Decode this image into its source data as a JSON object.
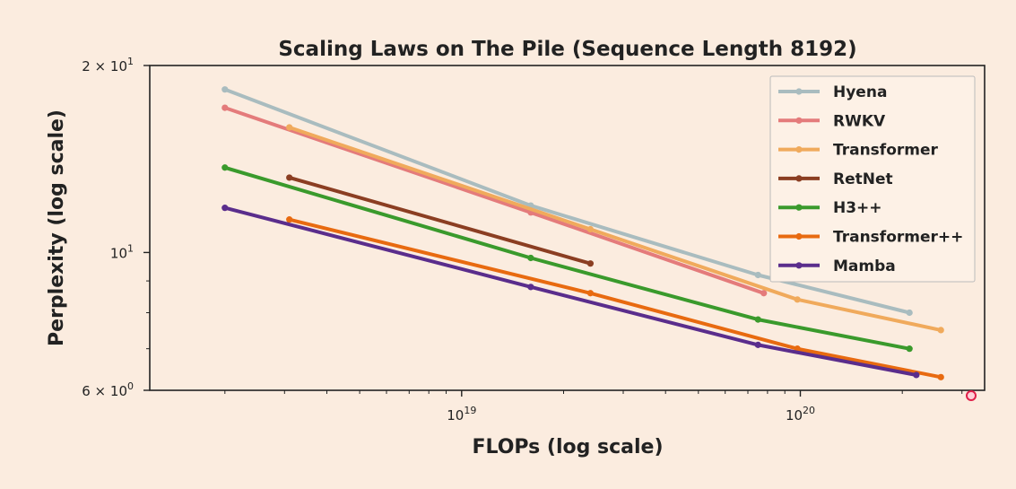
{
  "chart_data": {
    "type": "line",
    "title": "Scaling Laws on The Pile (Sequence Length 8192)",
    "xlabel": "FLOPs (log scale)",
    "ylabel": "Perplexity (log scale)",
    "xscale": "log",
    "yscale": "log",
    "xlim": [
      1.2e+18,
      3.5e+20
    ],
    "ylim": [
      6,
      20
    ],
    "x_ticks": [
      {
        "value": 1e+19,
        "base": "10",
        "exp": "19"
      },
      {
        "value": 1e+20,
        "base": "10",
        "exp": "20"
      }
    ],
    "y_ticks": [
      {
        "value": 20,
        "label": "2 × 10",
        "exp": "1"
      },
      {
        "value": 10,
        "label": "10",
        "exp": "1"
      },
      {
        "value": 6,
        "label": "6 × 10",
        "exp": "0"
      }
    ],
    "grid": false,
    "legend": "top-right",
    "series": [
      {
        "name": "Hyena",
        "color": "#a9bcbf",
        "points": [
          [
            2e+18,
            18.3
          ],
          [
            1.6e+19,
            11.9
          ],
          [
            7.5e+19,
            9.2
          ],
          [
            2.1e+20,
            8.0
          ]
        ]
      },
      {
        "name": "RWKV",
        "color": "#e47b7b",
        "points": [
          [
            2e+18,
            17.1
          ],
          [
            1.6e+19,
            11.6
          ],
          [
            7.8e+19,
            8.6
          ]
        ]
      },
      {
        "name": "Transformer",
        "color": "#f0aa5c",
        "points": [
          [
            3.1e+18,
            15.9
          ],
          [
            2.4e+19,
            10.9
          ],
          [
            9.8e+19,
            8.4
          ],
          [
            2.6e+20,
            7.5
          ]
        ]
      },
      {
        "name": "RetNet",
        "color": "#8b3e22",
        "points": [
          [
            3.1e+18,
            13.2
          ],
          [
            2.4e+19,
            9.6
          ]
        ]
      },
      {
        "name": "H3++",
        "color": "#3a9a2c",
        "points": [
          [
            2e+18,
            13.7
          ],
          [
            1.6e+19,
            9.8
          ],
          [
            7.5e+19,
            7.8
          ],
          [
            2.1e+20,
            7.0
          ]
        ]
      },
      {
        "name": "Transformer++",
        "color": "#e86a10",
        "points": [
          [
            3.1e+18,
            11.3
          ],
          [
            2.4e+19,
            8.6
          ],
          [
            9.8e+19,
            7.0
          ],
          [
            2.6e+20,
            6.3
          ]
        ]
      },
      {
        "name": "Mamba",
        "color": "#5a2d8c",
        "points": [
          [
            2e+18,
            11.8
          ],
          [
            1.6e+19,
            8.8
          ],
          [
            7.5e+19,
            7.1
          ],
          [
            2.2e+20,
            6.35
          ]
        ]
      }
    ]
  }
}
